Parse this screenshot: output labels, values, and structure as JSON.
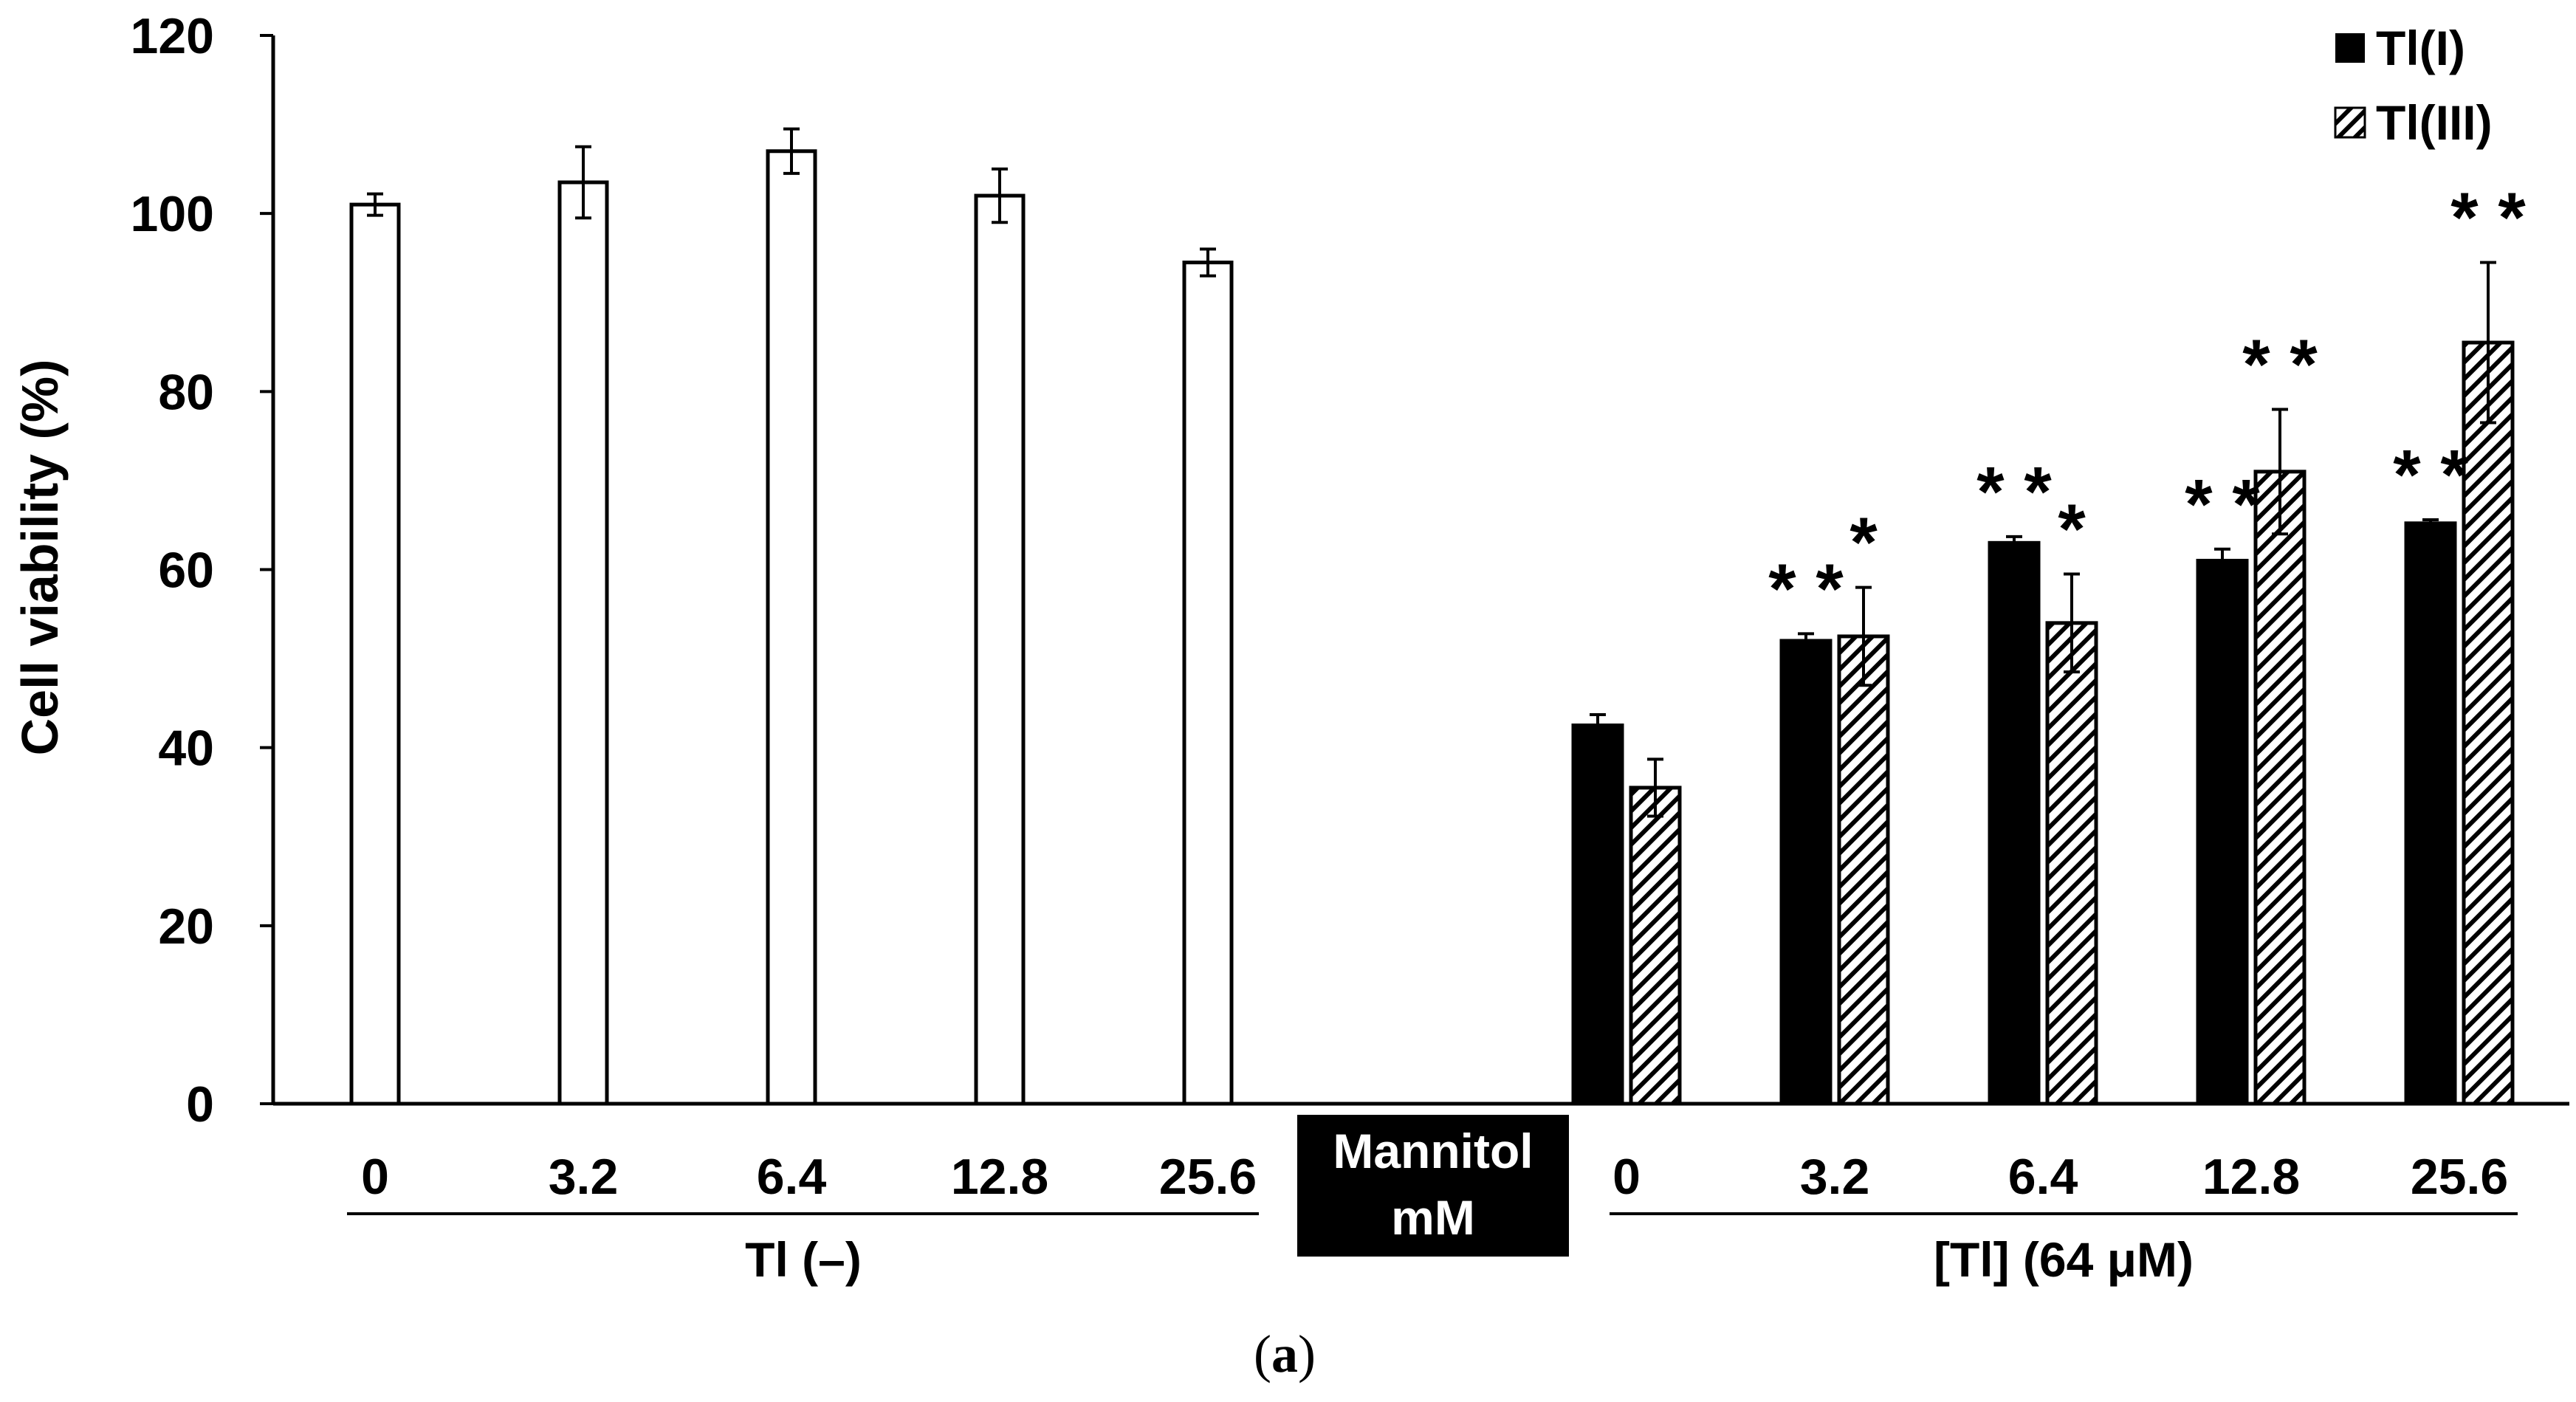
{
  "chart_data": {
    "type": "bar",
    "ylabel": "Cell viability (%)",
    "ylim": [
      0,
      120
    ],
    "yticks": [
      "0",
      "20",
      "40",
      "60",
      "80",
      "100",
      "120"
    ],
    "legend": [
      "Tl(I)",
      "Tl(III)"
    ],
    "legend_position": "top-right",
    "control_group": {
      "label": "Tl (–)",
      "categories": [
        "0",
        "3.2",
        "6.4",
        "12.8",
        "25.6"
      ],
      "values": [
        101,
        103.5,
        107,
        102,
        94.5
      ],
      "errors": [
        1.2,
        4,
        2.5,
        3,
        1.5
      ]
    },
    "mannitol_box": {
      "line1": "Mannitol",
      "line2": "mM"
    },
    "treated_group": {
      "label": "[Tl] (64 μM)",
      "categories": [
        "0",
        "3.2",
        "6.4",
        "12.8",
        "25.6"
      ],
      "series": [
        {
          "name": "Tl(I)",
          "values": [
            42.5,
            52,
            63,
            61,
            65.2
          ],
          "errors": [
            1.2,
            0.8,
            0.7,
            1.3,
            0.4
          ],
          "annotations": [
            "",
            "* *",
            "* *",
            "* *",
            "* *"
          ]
        },
        {
          "name": "Tl(III)",
          "values": [
            35.5,
            52.5,
            54,
            71,
            85.5
          ],
          "errors": [
            3.2,
            5.5,
            5.5,
            7,
            9
          ],
          "annotations": [
            "",
            "*",
            "*",
            "* *",
            "* *"
          ]
        }
      ]
    },
    "caption_open": "(",
    "caption_letter": "a",
    "caption_close": ")"
  }
}
